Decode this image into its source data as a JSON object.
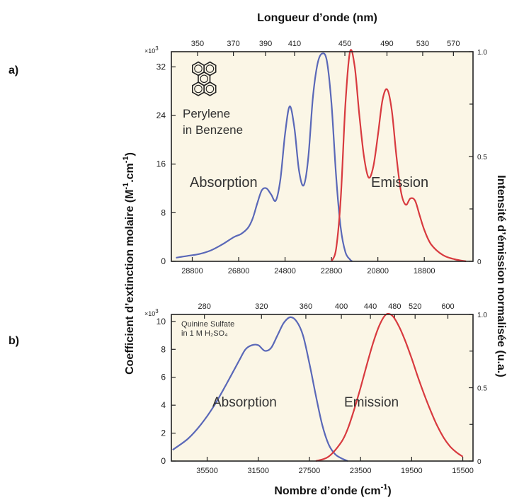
{
  "figure": {
    "top_axis_title": "Longueur d’onde (nm)",
    "bottom_axis_title": "Nombre d’onde (cm",
    "bottom_axis_title_sup": "-1",
    "bottom_axis_title_end": ")",
    "left_axis_title": "Coefficient d’extinction molaire (M",
    "left_axis_title_sup1": "-1",
    "left_axis_title_mid": ".cm",
    "left_axis_title_sup2": "-1",
    "left_axis_title_end": ")",
    "right_axis_title": "Intensité d’émission normalisée (u.a.)",
    "colors": {
      "background": "#fbf6e6",
      "frame": "#222222",
      "absorption": "#5a68b8",
      "emission": "#d83a3f"
    }
  },
  "chart_data": [
    {
      "panel_label": "a)",
      "type": "line",
      "annotations": [
        "Perylene",
        "in Benzene",
        "Absorption",
        "Emission"
      ],
      "ylabel_multiplier": "×10",
      "ylabel_multiplier_exp": "3",
      "x_axis": {
        "reversed": true,
        "xlim": [
          29700,
          16700
        ],
        "ticks": [
          28800,
          26800,
          24800,
          22800,
          20800,
          18800
        ],
        "tick_labels": [
          "28800",
          "26800",
          "24800",
          "22800",
          "20800",
          "18800"
        ]
      },
      "top_axis": {
        "ticks_nm": [
          350,
          370,
          390,
          410,
          450,
          490,
          530,
          570
        ],
        "tick_labels": [
          "350",
          "370",
          "390",
          "410",
          "450",
          "490",
          "530",
          "570"
        ]
      },
      "y_left": {
        "ylim": [
          0,
          34.5
        ],
        "ticks": [
          0,
          8,
          16,
          24,
          32
        ],
        "tick_labels": [
          "0",
          "8",
          "16",
          "24",
          "32"
        ]
      },
      "y_right": {
        "ylim": [
          0,
          1.0
        ],
        "ticks": [
          0,
          0.5,
          1.0
        ],
        "tick_labels": [
          "0",
          "0.5",
          "1.0"
        ],
        "minor_ticks": [
          0.25,
          0.75
        ]
      },
      "series": [
        {
          "name": "Absorption",
          "axis": "left",
          "x": [
            29500,
            29000,
            28500,
            28000,
            27500,
            27000,
            26700,
            26400,
            26200,
            26000,
            25800,
            25600,
            25400,
            25200,
            25000,
            24800,
            24600,
            24400,
            24200,
            24000,
            23800,
            23600,
            23400,
            23200,
            23000,
            22800,
            22600,
            22400,
            22200,
            22000,
            21900
          ],
          "y": [
            0.6,
            0.9,
            1.2,
            1.8,
            2.8,
            4.0,
            4.5,
            5.5,
            7.0,
            9.5,
            11.7,
            12.0,
            11.0,
            10.0,
            13.5,
            21.0,
            25.5,
            22.0,
            15.0,
            12.5,
            17.0,
            27.0,
            32.5,
            34.2,
            33.0,
            26.0,
            14.0,
            5.5,
            1.5,
            0.3,
            0.0
          ]
        },
        {
          "name": "Emission",
          "axis": "right",
          "x": [
            22800,
            22600,
            22400,
            22200,
            22000,
            21800,
            21600,
            21400,
            21200,
            21000,
            20800,
            20600,
            20400,
            20200,
            20000,
            19800,
            19600,
            19400,
            19200,
            19000,
            18800,
            18500,
            18000,
            17500,
            17000
          ],
          "y": [
            0.0,
            0.06,
            0.3,
            0.75,
            1.0,
            0.93,
            0.7,
            0.5,
            0.4,
            0.45,
            0.6,
            0.77,
            0.82,
            0.72,
            0.5,
            0.33,
            0.27,
            0.3,
            0.29,
            0.22,
            0.15,
            0.08,
            0.03,
            0.01,
            0.0
          ]
        }
      ]
    },
    {
      "panel_label": "b)",
      "type": "line",
      "annotations": [
        "Quinine Sulfate",
        "in 1 M H₂SO₄",
        "Absorption",
        "Emission"
      ],
      "ylabel_multiplier": "×10",
      "ylabel_multiplier_exp": "3",
      "x_axis": {
        "reversed": true,
        "xlim": [
          38300,
          14700
        ],
        "ticks": [
          35500,
          31500,
          27500,
          23500,
          19500,
          15500
        ],
        "tick_labels": [
          "35500",
          "31500",
          "27500",
          "23500",
          "19500",
          "15500"
        ]
      },
      "top_axis": {
        "ticks_nm": [
          280,
          320,
          360,
          400,
          440,
          480,
          520,
          600
        ],
        "tick_labels": [
          "280",
          "320",
          "360",
          "400",
          "440",
          "480",
          "520",
          "600"
        ]
      },
      "y_left": {
        "ylim": [
          0,
          10.5
        ],
        "ticks": [
          0,
          2,
          4,
          6,
          8,
          10
        ],
        "tick_labels": [
          "0",
          "2",
          "4",
          "6",
          "8",
          "10"
        ]
      },
      "y_right": {
        "ylim": [
          0,
          1.0
        ],
        "ticks": [
          0,
          0.5,
          1.0
        ],
        "tick_labels": [
          "0",
          "0.5",
          "1.0"
        ],
        "minor_ticks": [
          0.25,
          0.75
        ]
      },
      "series": [
        {
          "name": "Absorption",
          "axis": "left",
          "x": [
            38200,
            37000,
            36000,
            35000,
            34000,
            33000,
            32500,
            32000,
            31500,
            31000,
            30500,
            30000,
            29500,
            29000,
            28500,
            28000,
            27500,
            27000,
            26500,
            26000,
            25500,
            25000,
            24500
          ],
          "y": [
            0.8,
            1.6,
            2.6,
            3.9,
            5.5,
            7.2,
            8.0,
            8.3,
            8.3,
            7.9,
            8.1,
            9.0,
            9.9,
            10.3,
            10.0,
            9.0,
            7.0,
            4.7,
            2.6,
            1.2,
            0.5,
            0.2,
            0.0
          ]
        },
        {
          "name": "Emission",
          "axis": "right",
          "x": [
            27000,
            26000,
            25000,
            24500,
            24000,
            23500,
            23000,
            22500,
            22000,
            21500,
            21000,
            20500,
            20000,
            19500,
            19000,
            18500,
            18000,
            17500,
            17000,
            16500,
            16000,
            15500
          ],
          "y": [
            0.0,
            0.03,
            0.13,
            0.22,
            0.35,
            0.5,
            0.66,
            0.81,
            0.93,
            1.0,
            0.99,
            0.92,
            0.82,
            0.7,
            0.57,
            0.45,
            0.34,
            0.24,
            0.16,
            0.1,
            0.06,
            0.03
          ]
        }
      ]
    }
  ]
}
